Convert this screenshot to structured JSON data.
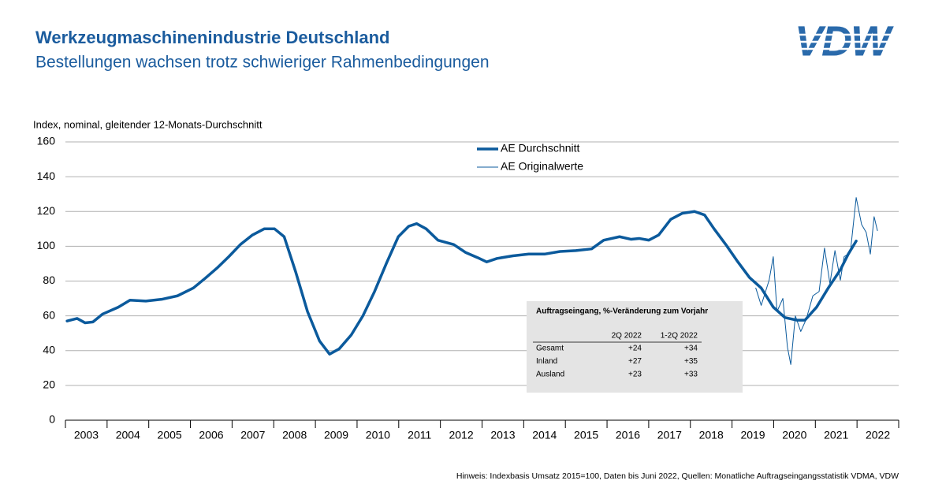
{
  "title": "Werkzeugmaschinenindustrie Deutschland",
  "subtitle": "Bestellungen wachsen trotz schwieriger Rahmenbedingungen",
  "logo": "VDW",
  "footnote": "Hinweis: Indexbasis Umsatz 2015=100, Daten bis Juni 2022, Quellen: Monatliche Auftragseingangsstatistik VDMA, VDW",
  "chart_data": {
    "type": "line",
    "y_label": "Index, nominal, gleitender 12-Monats-Durchschnitt",
    "xlim": [
      2003,
      2023
    ],
    "xticks": [
      2003,
      2004,
      2005,
      2006,
      2007,
      2008,
      2009,
      2010,
      2011,
      2012,
      2013,
      2014,
      2015,
      2016,
      2017,
      2018,
      2019,
      2020,
      2021,
      2022
    ],
    "ylim": [
      0,
      160
    ],
    "yticks": [
      0,
      20,
      40,
      60,
      80,
      100,
      120,
      140,
      160
    ],
    "grid": true,
    "legend": "top",
    "series": [
      {
        "name": "AE Durchschnitt",
        "color": "#0b5a9c",
        "width": 3.5,
        "x": [
          2003.04,
          2003.28,
          2003.47,
          2003.66,
          2003.89,
          2004.27,
          2004.55,
          2004.93,
          2005.31,
          2005.69,
          2006.07,
          2006.35,
          2006.64,
          2006.92,
          2007.2,
          2007.49,
          2007.77,
          2008.02,
          2008.25,
          2008.53,
          2008.81,
          2009.1,
          2009.34,
          2009.57,
          2009.86,
          2010.14,
          2010.42,
          2010.71,
          2010.99,
          2011.24,
          2011.43,
          2011.66,
          2011.94,
          2012.32,
          2012.6,
          2012.89,
          2013.11,
          2013.36,
          2013.74,
          2014.12,
          2014.5,
          2014.87,
          2015.25,
          2015.63,
          2015.92,
          2016.3,
          2016.58,
          2016.77,
          2017.0,
          2017.24,
          2017.53,
          2017.81,
          2018.1,
          2018.34,
          2018.57,
          2018.85,
          2019.14,
          2019.42,
          2019.7,
          2019.99,
          2020.27,
          2020.56,
          2020.75,
          2021.03,
          2021.31,
          2021.6,
          2021.79,
          2021.98
        ],
        "values": [
          57,
          58.5,
          56,
          56.5,
          61,
          65,
          69,
          68.5,
          69.5,
          71.5,
          76,
          81.5,
          87.5,
          94,
          101,
          106.5,
          110,
          110,
          105.5,
          85,
          62.5,
          45.5,
          38,
          41,
          49,
          60,
          74,
          90.5,
          105.5,
          111.5,
          113,
          110,
          103.5,
          101,
          96.5,
          93.5,
          91,
          93,
          94.5,
          95.5,
          95.5,
          97,
          97.5,
          98.5,
          103.5,
          105.5,
          104,
          104.5,
          103.5,
          106.5,
          115.5,
          119,
          120,
          118,
          110,
          101,
          91,
          82,
          76,
          65,
          59,
          57.5,
          57.5,
          65,
          76,
          86.5,
          95.5,
          103
        ]
      },
      {
        "name": "AE Originalwerte",
        "color": "#0b5a9c",
        "width": 1,
        "x": [
          2019.57,
          2019.7,
          2019.89,
          2019.99,
          2020.08,
          2020.22,
          2020.33,
          2020.41,
          2020.52,
          2020.65,
          2020.78,
          2020.94,
          2021.09,
          2021.22,
          2021.35,
          2021.47,
          2021.6,
          2021.69,
          2021.84,
          2021.98,
          2022.11,
          2022.22,
          2022.32,
          2022.41,
          2022.49
        ],
        "values": [
          76,
          66,
          80.5,
          94,
          62.5,
          70,
          42,
          32,
          60,
          51,
          58,
          71.5,
          74,
          99,
          78.5,
          97.5,
          80.5,
          94,
          96.5,
          128,
          112.5,
          108,
          95.5,
          117,
          109
        ]
      }
    ],
    "inset_table": {
      "title": "Auftragseingang, %-Veränderung zum Vorjahr",
      "columns": [
        "2Q 2022",
        "1-2Q 2022"
      ],
      "rows": [
        {
          "label": "Gesamt",
          "values": [
            "+24",
            "+34"
          ]
        },
        {
          "label": "Inland",
          "values": [
            "+27",
            "+35"
          ]
        },
        {
          "label": "Ausland",
          "values": [
            "+23",
            "+33"
          ]
        }
      ]
    }
  }
}
